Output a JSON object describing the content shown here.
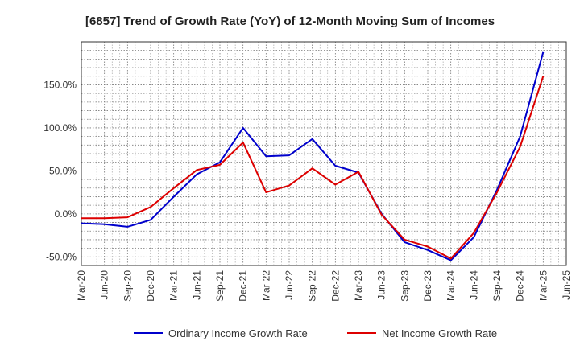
{
  "chart_data": {
    "type": "line",
    "title": "[6857]  Trend of Growth Rate (YoY) of 12-Month Moving Sum of Incomes",
    "xlabel": "",
    "ylabel": "",
    "x": [
      "Mar-20",
      "Jun-20",
      "Sep-20",
      "Dec-20",
      "Mar-21",
      "Jun-21",
      "Sep-21",
      "Dec-21",
      "Mar-22",
      "Jun-22",
      "Sep-22",
      "Dec-22",
      "Mar-23",
      "Jun-23",
      "Sep-23",
      "Dec-23",
      "Mar-24",
      "Jun-24",
      "Sep-24",
      "Dec-24",
      "Mar-25",
      "Jun-25"
    ],
    "ylim": [
      -60,
      200
    ],
    "yticks": [
      -50,
      0,
      50,
      100,
      150
    ],
    "ytick_labels": [
      "-50.0%",
      "0.0%",
      "50.0%",
      "100.0%",
      "150.0%"
    ],
    "grid": true,
    "legend_position": "bottom",
    "series": [
      {
        "name": "Ordinary Income Growth Rate",
        "color": "#0000cc",
        "values": [
          -11,
          -12,
          -15,
          -7,
          20,
          46,
          60,
          100,
          67,
          68,
          87,
          56,
          48,
          0,
          -33,
          -42,
          -54,
          -27,
          28,
          90,
          188,
          null
        ]
      },
      {
        "name": "Net Income Growth Rate",
        "color": "#dd0000",
        "values": [
          -5,
          -5,
          -4,
          8,
          30,
          51,
          57,
          83,
          25,
          33,
          53,
          34,
          49,
          -1,
          -30,
          -38,
          -52,
          -22,
          25,
          78,
          160,
          null
        ]
      }
    ]
  }
}
